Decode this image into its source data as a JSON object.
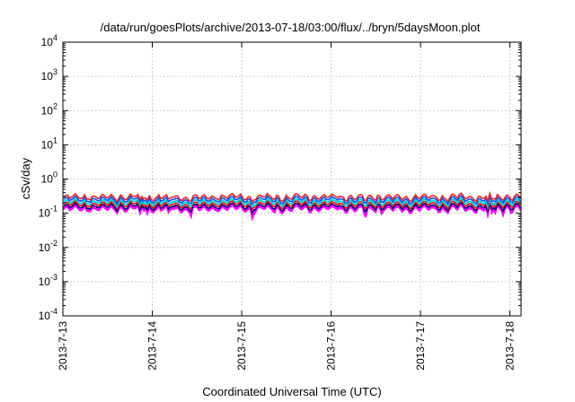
{
  "chart_data": {
    "type": "line",
    "title": "/data/run/goesPlots/archive/2013-07-18/03:00/flux/../bryn/5daysMoon.plot",
    "xlabel": "Coordinated Universal Time (UTC)",
    "ylabel": "cSv/day",
    "y_scale": "log",
    "ylim": [
      0.0001,
      10000
    ],
    "y_ticks": [
      {
        "base": "10",
        "exp": "-4",
        "value": 0.0001
      },
      {
        "base": "10",
        "exp": "-3",
        "value": 0.001
      },
      {
        "base": "10",
        "exp": "-2",
        "value": 0.01
      },
      {
        "base": "10",
        "exp": "-1",
        "value": 0.1
      },
      {
        "base": "10",
        "exp": "0",
        "value": 1
      },
      {
        "base": "10",
        "exp": "1",
        "value": 10
      },
      {
        "base": "10",
        "exp": "2",
        "value": 100
      },
      {
        "base": "10",
        "exp": "3",
        "value": 1000
      },
      {
        "base": "10",
        "exp": "4",
        "value": 10000
      }
    ],
    "xlim": [
      "2013-07-13",
      "2013-07-18 03:00"
    ],
    "x_ticks": [
      {
        "label": "2013-7-13",
        "value": "2013-07-13"
      },
      {
        "label": "2013-7-14",
        "value": "2013-07-14"
      },
      {
        "label": "2013-7-15",
        "value": "2013-07-15"
      },
      {
        "label": "2013-7-16",
        "value": "2013-07-16"
      },
      {
        "label": "2013-7-17",
        "value": "2013-07-17"
      },
      {
        "label": "2013-7-18",
        "value": "2013-07-18"
      }
    ],
    "grid": true,
    "series": [
      {
        "color": "#ff00ff",
        "fill": true,
        "base": 0.13,
        "low_spike": 0.05
      },
      {
        "color": "#000080",
        "fill": false,
        "base": 0.16,
        "low_spike": 0.09
      },
      {
        "color": "#ff0000",
        "fill": false,
        "base": 0.185,
        "low_spike": 0.12
      },
      {
        "color": "#00d0d0",
        "fill": false,
        "base": 0.215,
        "low_spike": 0.14
      },
      {
        "color": "#0050ff",
        "fill": false,
        "base": 0.255,
        "low_spike": 0.17
      },
      {
        "color": "#ee2222",
        "fill": false,
        "base": 0.3,
        "low_spike": 0.2
      }
    ]
  }
}
